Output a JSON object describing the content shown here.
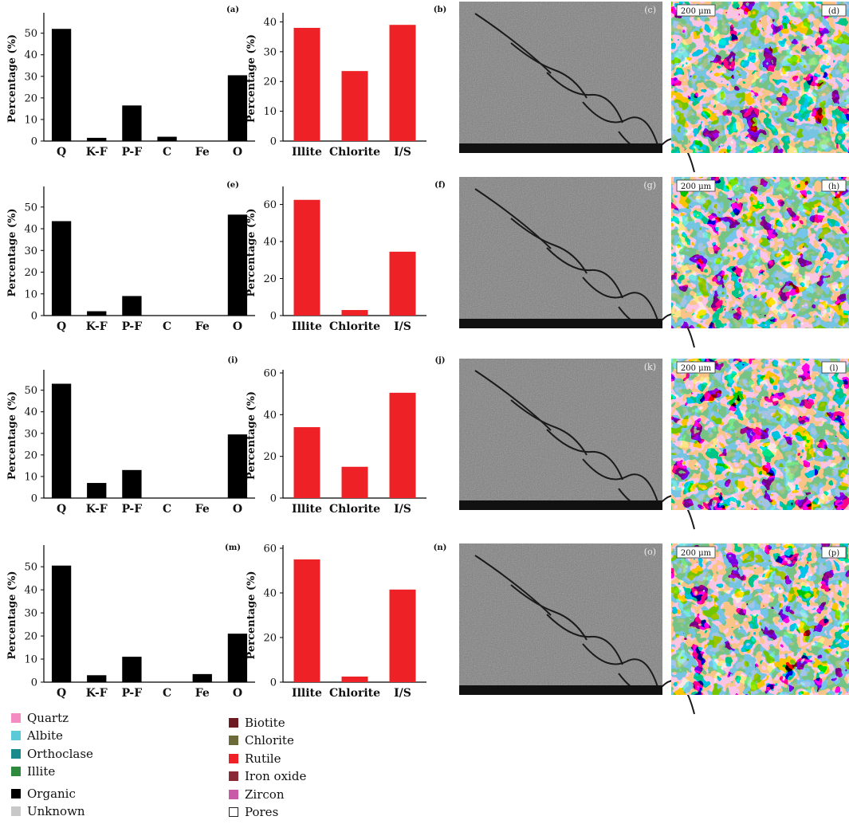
{
  "chart_data": [
    {
      "type": "bar",
      "panel": "a",
      "categories": [
        "Q",
        "K-F",
        "P-F",
        "C",
        "Fe",
        "O"
      ],
      "values": [
        52,
        1.5,
        16.5,
        2,
        0,
        30.5
      ],
      "ylabel": "Percentage (%)",
      "ylim": [
        0,
        58
      ],
      "yticks": [
        0,
        10,
        20,
        30,
        40,
        50
      ],
      "color": "#000000"
    },
    {
      "type": "bar",
      "panel": "b",
      "categories": [
        "Illite",
        "Chlorite",
        "I/S"
      ],
      "values": [
        38,
        23.5,
        39
      ],
      "ylabel": "Percentage (%)",
      "ylim": [
        0,
        42
      ],
      "yticks": [
        0,
        10,
        20,
        30,
        40
      ],
      "color": "#ee2226"
    },
    {
      "type": "bar",
      "panel": "e",
      "categories": [
        "Q",
        "K-F",
        "P-F",
        "C",
        "Fe",
        "O"
      ],
      "values": [
        43.5,
        2,
        9,
        0,
        0,
        46.5
      ],
      "ylabel": "Percentage (%)",
      "ylim": [
        0,
        58
      ],
      "yticks": [
        0,
        10,
        20,
        30,
        40,
        50
      ],
      "color": "#000000"
    },
    {
      "type": "bar",
      "panel": "f",
      "categories": [
        "Illite",
        "Chlorite",
        "I/S"
      ],
      "values": [
        62.5,
        3,
        34.5
      ],
      "ylabel": "Percentage (%)",
      "ylim": [
        0,
        68
      ],
      "yticks": [
        0,
        20,
        40,
        60
      ],
      "color": "#ee2226"
    },
    {
      "type": "bar",
      "panel": "i",
      "categories": [
        "Q",
        "K-F",
        "P-F",
        "C",
        "Fe",
        "O"
      ],
      "values": [
        53,
        7,
        13,
        0,
        0,
        29.5
      ],
      "ylabel": "Percentage (%)",
      "ylim": [
        0,
        58
      ],
      "yticks": [
        0,
        10,
        20,
        30,
        40,
        50
      ],
      "color": "#000000"
    },
    {
      "type": "bar",
      "panel": "j",
      "categories": [
        "Illite",
        "Chlorite",
        "I/S"
      ],
      "values": [
        34,
        15,
        50.5
      ],
      "ylabel": "Percentage (%)",
      "ylim": [
        0,
        60
      ],
      "yticks": [
        0,
        20,
        40,
        60
      ],
      "color": "#ee2226"
    },
    {
      "type": "bar",
      "panel": "m",
      "categories": [
        "Q",
        "K-F",
        "P-F",
        "C",
        "Fe",
        "O"
      ],
      "values": [
        50.5,
        3,
        11,
        0,
        3.5,
        21
      ],
      "ylabel": "Percentage (%)",
      "ylim": [
        0,
        58
      ],
      "yticks": [
        0,
        10,
        20,
        30,
        40,
        50
      ],
      "color": "#000000"
    },
    {
      "type": "bar",
      "panel": "n",
      "categories": [
        "Illite",
        "Chlorite",
        "I/S"
      ],
      "values": [
        55,
        2.5,
        41.5
      ],
      "ylabel": "Percentage (%)",
      "ylim": [
        0,
        60
      ],
      "yticks": [
        0,
        20,
        40,
        60
      ],
      "color": "#ee2226"
    }
  ],
  "panel_labels": {
    "a": "(a)",
    "b": "(b)",
    "c": "(c)",
    "d": "(d)",
    "e": "(e)",
    "f": "(f)",
    "g": "(g)",
    "h": "(h)",
    "i": "(i)",
    "j": "(j)",
    "k": "(k)",
    "l": "(l)",
    "m": "(m)",
    "n": "(n)",
    "o": "(o)",
    "p": "(p)"
  },
  "images": [
    {
      "sem_label": "(c)",
      "map_label": "(d)",
      "scale": "200 μm"
    },
    {
      "sem_label": "(g)",
      "map_label": "(h)",
      "scale": "200 μm"
    },
    {
      "sem_label": "(k)",
      "map_label": "(l)",
      "scale": "200 μm"
    },
    {
      "sem_label": "(o)",
      "map_label": "(p)",
      "scale": "200 μm"
    }
  ],
  "legend": {
    "col1": [
      {
        "label": "Quartz",
        "color": "#f58cc1"
      },
      {
        "label": "Albite",
        "color": "#5ccad6"
      },
      {
        "label": "Orthoclase",
        "color": "#1a8a8a"
      },
      {
        "label": "Illite",
        "color": "#2e8b3e"
      },
      {
        "label": "Organic",
        "color": "#000000"
      },
      {
        "label": "Unknown",
        "color": "#c8c8c8"
      }
    ],
    "col2": [
      {
        "label": "Biotite",
        "color": "#6e1a22"
      },
      {
        "label": "Chlorite",
        "color": "#6b6b3a"
      },
      {
        "label": "Rutile",
        "color": "#ee2226"
      },
      {
        "label": "Iron oxide",
        "color": "#8a2a36"
      },
      {
        "label": "Zircon",
        "color": "#c85aa8"
      },
      {
        "label": "Pores",
        "color": "#ffffff"
      }
    ]
  }
}
